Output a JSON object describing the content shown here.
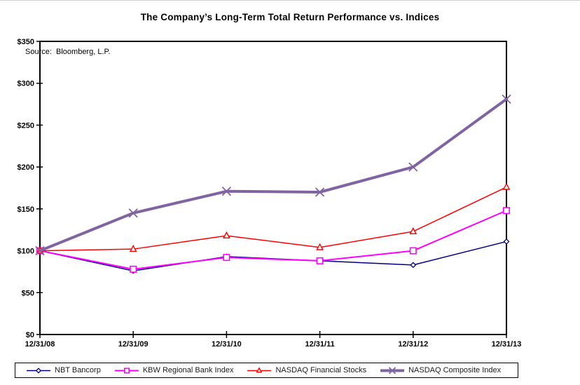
{
  "window": {
    "background": "#ffffff"
  },
  "title": "The Company’s Long-Term Total Return Performance vs. Indices",
  "source_note": "Source:  Bloomberg, L.P.",
  "chart_data": {
    "type": "line",
    "title": "The Company’s Long-Term Total Return Performance vs. Indices",
    "xlabel": "",
    "ylabel": "",
    "categories": [
      "12/31/08",
      "12/31/09",
      "12/31/10",
      "12/31/11",
      "12/31/12",
      "12/31/13"
    ],
    "ylim": [
      0,
      350
    ],
    "y_tick_step": 50,
    "y_ticks": [
      "$0",
      "$50",
      "$100",
      "$150",
      "$200",
      "$250",
      "$300",
      "$350"
    ],
    "grid": false,
    "legend_position": "bottom",
    "axis_color": "#000000",
    "series": [
      {
        "name": "NBT Bancorp",
        "color": "#000080",
        "marker": "diamond",
        "line_width": 1.5,
        "values": [
          100,
          76,
          93,
          88,
          83,
          111
        ]
      },
      {
        "name": "KBW Regional Bank Index",
        "color": "#ff00ff",
        "marker": "square",
        "line_width": 2,
        "values": [
          100,
          78,
          92,
          88,
          100,
          148
        ]
      },
      {
        "name": "NASDAQ Financial Stocks",
        "color": "#ff0000",
        "marker": "triangle",
        "line_width": 1.5,
        "values": [
          100,
          102,
          118,
          104,
          123,
          176
        ]
      },
      {
        "name": "NASDAQ Composite Index",
        "color": "#8064a2",
        "marker": "x",
        "line_width": 4,
        "values": [
          100,
          145,
          171,
          170,
          200,
          281
        ]
      }
    ]
  }
}
